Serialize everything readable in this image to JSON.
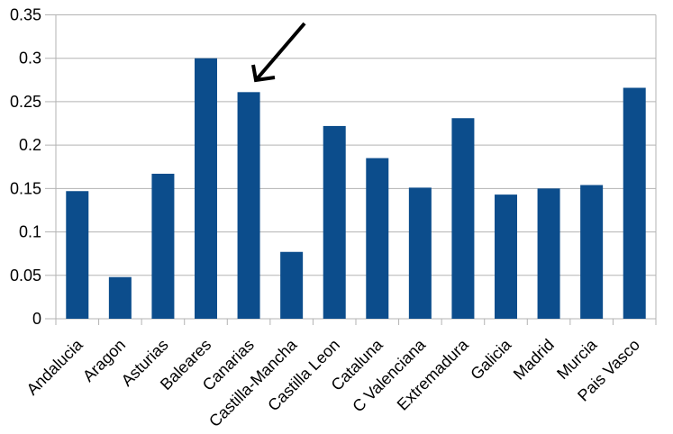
{
  "chart_data": {
    "type": "bar",
    "title": "",
    "xlabel": "",
    "ylabel": "",
    "categories": [
      "Andalucia",
      "Aragon",
      "Asturias",
      "Baleares",
      "Canarias",
      "Castilla-Mancha",
      "Castilla Leon",
      "Cataluna",
      "C Valenciana",
      "Extremadura",
      "Galicia",
      "Madrid",
      "Murcia",
      "Pais Vasco"
    ],
    "values": [
      0.147,
      0.048,
      0.167,
      0.3,
      0.261,
      0.077,
      0.222,
      0.185,
      0.151,
      0.231,
      0.143,
      0.15,
      0.154,
      0.266
    ],
    "ylim": [
      0,
      0.35
    ],
    "yticks": [
      0,
      0.05,
      0.1,
      0.15,
      0.2,
      0.25,
      0.3,
      0.35
    ],
    "ytick_labels": [
      "0",
      "0.05",
      "0.1",
      "0.15",
      "0.2",
      "0.25",
      "0.3",
      "0.35"
    ],
    "grid": true,
    "legend": false,
    "x_label_rotation_deg": 45,
    "colors": {
      "bar": "#0c4d8c",
      "grid": "#b3b3b3",
      "axis": "#b3b3b3",
      "text": "#000000",
      "background": "#ffffff",
      "annotation": "#000000"
    },
    "annotation": {
      "type": "hand-drawn-arrow",
      "points_to_category": "Canarias",
      "tail_xy": [
        338,
        26
      ],
      "tip_xy": [
        284,
        89
      ],
      "barbs": [
        [
          281,
          72
        ],
        [
          305,
          86
        ]
      ]
    }
  }
}
